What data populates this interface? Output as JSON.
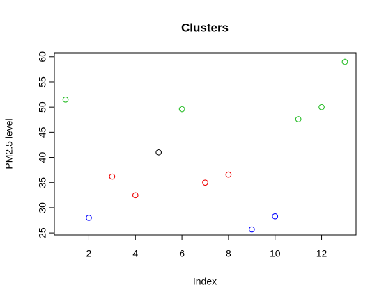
{
  "chart_data": {
    "type": "scatter",
    "title": "Clusters",
    "x_label": "Index",
    "y_label": "PM2.5  level",
    "x": [
      1,
      2,
      3,
      4,
      5,
      6,
      7,
      8,
      9,
      10,
      11,
      12,
      13
    ],
    "values": [
      51.5,
      28,
      36.2,
      32.5,
      41,
      49.6,
      35,
      36.6,
      25.7,
      28.3,
      47.6,
      50,
      59
    ],
    "colors": [
      "#22bb22",
      "#0000ff",
      "#ee0000",
      "#ee0000",
      "#000000",
      "#22bb22",
      "#ee0000",
      "#ee0000",
      "#0000ff",
      "#0000ff",
      "#22bb22",
      "#22bb22",
      "#22bb22"
    ],
    "xlim": [
      0.52,
      13.48
    ],
    "ylim": [
      24.6,
      60.8
    ],
    "xticks": [
      2,
      4,
      6,
      8,
      10,
      12
    ],
    "yticks": [
      25,
      30,
      35,
      40,
      45,
      50,
      55,
      60
    ],
    "grid": false
  }
}
